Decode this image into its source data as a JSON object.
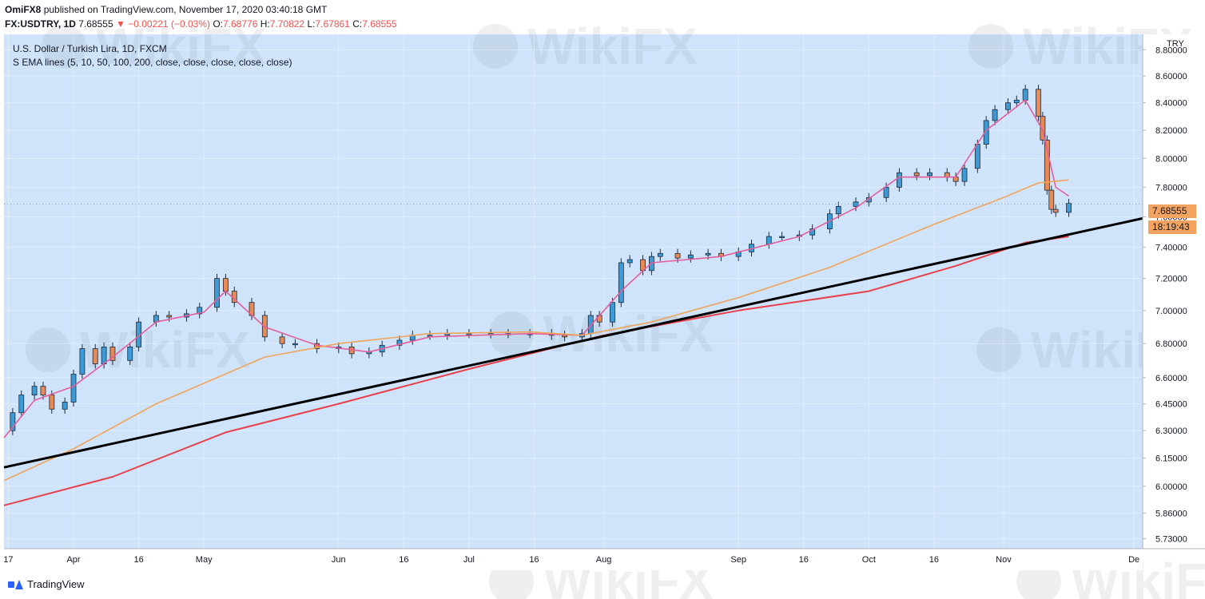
{
  "header": {
    "publisher": "OmiFX8",
    "published_text": " published on TradingView.com, November 17, 2020 03:40:18 GMT",
    "symbol": "FX:USDTRY, 1D",
    "last": "7.68555",
    "change_arrow": "▼",
    "change": "−0.00221 (−0.03%)",
    "open": "7.68776",
    "high": "7.70822",
    "low": "7.67861",
    "close": "7.68555"
  },
  "legend": {
    "series_title": "U.S. Dollar / Turkish Lira, 1D, FXCM",
    "indicator": "S EMA lines (5, 10, 50, 100, 200, close, close, close, close, close)"
  },
  "currency_label": "TRY",
  "price_tag": "7.68555",
  "timer_tag": "18:19:43",
  "footer": {
    "brand": "TradingView"
  },
  "watermark": "WikiFX",
  "colors": {
    "plot_bg": "#cfe4fb",
    "up_candle": "#3c9bd6",
    "down_candle": "#e78a55",
    "ema5": "#e45f9a",
    "ema50": "#f0a45a",
    "ema200": "#e8404a",
    "trendline": "#000000"
  },
  "chart_data": {
    "type": "candlestick",
    "y_axis_ticks": [
      8.8,
      8.6,
      8.4,
      8.2,
      8.0,
      7.8,
      7.6,
      7.4,
      7.2,
      7.0,
      6.8,
      6.6,
      6.45,
      6.3,
      6.15,
      6.0,
      5.86,
      5.73
    ],
    "y_axis_tick_labels": [
      "8.80000",
      "8.60000",
      "8.40000",
      "8.20000",
      "8.00000",
      "7.80000",
      "7.60000",
      "7.40000",
      "7.20000",
      "7.00000",
      "6.80000",
      "6.60000",
      "6.45000",
      "6.30000",
      "6.15000",
      "6.00000",
      "5.86000",
      "5.73000"
    ],
    "y_scale": "log",
    "ylim": [
      5.68,
      8.92
    ],
    "x_axis_labels": [
      "17",
      "Apr",
      "16",
      "May",
      "Jun",
      "16",
      "Jul",
      "16",
      "Aug",
      "Sep",
      "16",
      "Oct",
      "16",
      "Nov",
      "De"
    ],
    "x_axis_label_dates": [
      "2020-03-17",
      "2020-04-01",
      "2020-04-16",
      "2020-05-01",
      "2020-06-01",
      "2020-06-16",
      "2020-07-01",
      "2020-07-16",
      "2020-08-01",
      "2020-09-01",
      "2020-09-16",
      "2020-10-01",
      "2020-10-16",
      "2020-11-01",
      "2020-12-01"
    ],
    "xlim": [
      "2020-03-16",
      "2020-12-03"
    ],
    "last_price": 7.68555,
    "closes": [
      [
        "2020-03-16",
        6.3
      ],
      [
        "2020-03-18",
        6.4
      ],
      [
        "2020-03-20",
        6.5
      ],
      [
        "2020-03-23",
        6.55
      ],
      [
        "2020-03-25",
        6.5
      ],
      [
        "2020-03-27",
        6.42
      ],
      [
        "2020-03-30",
        6.46
      ],
      [
        "2020-04-01",
        6.62
      ],
      [
        "2020-04-03",
        6.77
      ],
      [
        "2020-04-06",
        6.68
      ],
      [
        "2020-04-08",
        6.78
      ],
      [
        "2020-04-10",
        6.7
      ],
      [
        "2020-04-14",
        6.78
      ],
      [
        "2020-04-16",
        6.93
      ],
      [
        "2020-04-20",
        6.97
      ],
      [
        "2020-04-23",
        6.96
      ],
      [
        "2020-04-27",
        6.98
      ],
      [
        "2020-04-30",
        7.02
      ],
      [
        "2020-05-04",
        7.2
      ],
      [
        "2020-05-06",
        7.12
      ],
      [
        "2020-05-08",
        7.05
      ],
      [
        "2020-05-12",
        6.97
      ],
      [
        "2020-05-15",
        6.84
      ],
      [
        "2020-05-19",
        6.8
      ],
      [
        "2020-05-22",
        6.8
      ],
      [
        "2020-05-27",
        6.77
      ],
      [
        "2020-06-01",
        6.78
      ],
      [
        "2020-06-04",
        6.74
      ],
      [
        "2020-06-08",
        6.75
      ],
      [
        "2020-06-11",
        6.79
      ],
      [
        "2020-06-15",
        6.82
      ],
      [
        "2020-06-18",
        6.85
      ],
      [
        "2020-06-22",
        6.85
      ],
      [
        "2020-06-26",
        6.86
      ],
      [
        "2020-07-01",
        6.86
      ],
      [
        "2020-07-06",
        6.86
      ],
      [
        "2020-07-10",
        6.86
      ],
      [
        "2020-07-15",
        6.86
      ],
      [
        "2020-07-20",
        6.85
      ],
      [
        "2020-07-23",
        6.84
      ],
      [
        "2020-07-27",
        6.86
      ],
      [
        "2020-07-29",
        6.97
      ],
      [
        "2020-07-31",
        6.93
      ],
      [
        "2020-08-03",
        7.05
      ],
      [
        "2020-08-05",
        7.3
      ],
      [
        "2020-08-07",
        7.32
      ],
      [
        "2020-08-10",
        7.25
      ],
      [
        "2020-08-12",
        7.34
      ],
      [
        "2020-08-14",
        7.36
      ],
      [
        "2020-08-18",
        7.33
      ],
      [
        "2020-08-21",
        7.35
      ],
      [
        "2020-08-25",
        7.36
      ],
      [
        "2020-08-28",
        7.34
      ],
      [
        "2020-09-01",
        7.37
      ],
      [
        "2020-09-04",
        7.42
      ],
      [
        "2020-09-08",
        7.47
      ],
      [
        "2020-09-11",
        7.47
      ],
      [
        "2020-09-15",
        7.48
      ],
      [
        "2020-09-18",
        7.52
      ],
      [
        "2020-09-22",
        7.62
      ],
      [
        "2020-09-24",
        7.67
      ],
      [
        "2020-09-28",
        7.7
      ],
      [
        "2020-10-01",
        7.73
      ],
      [
        "2020-10-05",
        7.8
      ],
      [
        "2020-10-08",
        7.9
      ],
      [
        "2020-10-12",
        7.88
      ],
      [
        "2020-10-15",
        7.9
      ],
      [
        "2020-10-19",
        7.87
      ],
      [
        "2020-10-21",
        7.84
      ],
      [
        "2020-10-23",
        7.93
      ],
      [
        "2020-10-26",
        8.1
      ],
      [
        "2020-10-28",
        8.27
      ],
      [
        "2020-10-30",
        8.35
      ],
      [
        "2020-11-02",
        8.4
      ],
      [
        "2020-11-04",
        8.42
      ],
      [
        "2020-11-06",
        8.5
      ],
      [
        "2020-11-09",
        8.3
      ],
      [
        "2020-11-10",
        8.13
      ],
      [
        "2020-11-11",
        7.78
      ],
      [
        "2020-11-12",
        7.65
      ],
      [
        "2020-11-13",
        7.63
      ],
      [
        "2020-11-16",
        7.69
      ]
    ],
    "series": [
      {
        "name": "",
        "kind": "ema-fast",
        "points": [
          [
            "2020-03-16",
            6.26
          ],
          [
            "2020-03-23",
            6.47
          ],
          [
            "2020-04-01",
            6.55
          ],
          [
            "2020-04-10",
            6.72
          ],
          [
            "2020-04-20",
            6.93
          ],
          [
            "2020-05-01",
            6.99
          ],
          [
            "2020-05-06",
            7.12
          ],
          [
            "2020-05-15",
            6.9
          ],
          [
            "2020-05-27",
            6.79
          ],
          [
            "2020-06-08",
            6.75
          ],
          [
            "2020-06-22",
            6.84
          ],
          [
            "2020-07-15",
            6.86
          ],
          [
            "2020-07-27",
            6.85
          ],
          [
            "2020-08-05",
            7.12
          ],
          [
            "2020-08-12",
            7.3
          ],
          [
            "2020-08-28",
            7.34
          ],
          [
            "2020-09-15",
            7.47
          ],
          [
            "2020-09-28",
            7.66
          ],
          [
            "2020-10-08",
            7.87
          ],
          [
            "2020-10-21",
            7.87
          ],
          [
            "2020-10-28",
            8.2
          ],
          [
            "2020-11-06",
            8.42
          ],
          [
            "2020-11-10",
            8.2
          ],
          [
            "2020-11-13",
            7.8
          ],
          [
            "2020-11-16",
            7.74
          ]
        ]
      },
      {
        "name": "",
        "kind": "ema-mid",
        "points": [
          [
            "2020-03-16",
            6.03
          ],
          [
            "2020-04-01",
            6.2
          ],
          [
            "2020-04-20",
            6.45
          ],
          [
            "2020-05-15",
            6.72
          ],
          [
            "2020-06-01",
            6.8
          ],
          [
            "2020-06-22",
            6.86
          ],
          [
            "2020-07-15",
            6.87
          ],
          [
            "2020-07-27",
            6.85
          ],
          [
            "2020-08-12",
            6.93
          ],
          [
            "2020-09-01",
            7.08
          ],
          [
            "2020-09-22",
            7.27
          ],
          [
            "2020-10-16",
            7.55
          ],
          [
            "2020-11-01",
            7.73
          ],
          [
            "2020-11-09",
            7.83
          ],
          [
            "2020-11-16",
            7.85
          ]
        ]
      },
      {
        "name": "",
        "kind": "ema-slow",
        "points": [
          [
            "2020-03-16",
            5.9
          ],
          [
            "2020-04-10",
            6.05
          ],
          [
            "2020-05-06",
            6.29
          ],
          [
            "2020-06-01",
            6.45
          ],
          [
            "2020-07-01",
            6.65
          ],
          [
            "2020-08-01",
            6.85
          ],
          [
            "2020-09-01",
            7.0
          ],
          [
            "2020-10-01",
            7.12
          ],
          [
            "2020-10-21",
            7.28
          ],
          [
            "2020-11-06",
            7.43
          ],
          [
            "2020-11-16",
            7.47
          ]
        ]
      },
      {
        "name": "",
        "kind": "trendline",
        "points": [
          [
            "2020-03-16",
            6.1
          ],
          [
            "2020-12-03",
            7.59
          ]
        ]
      }
    ]
  }
}
